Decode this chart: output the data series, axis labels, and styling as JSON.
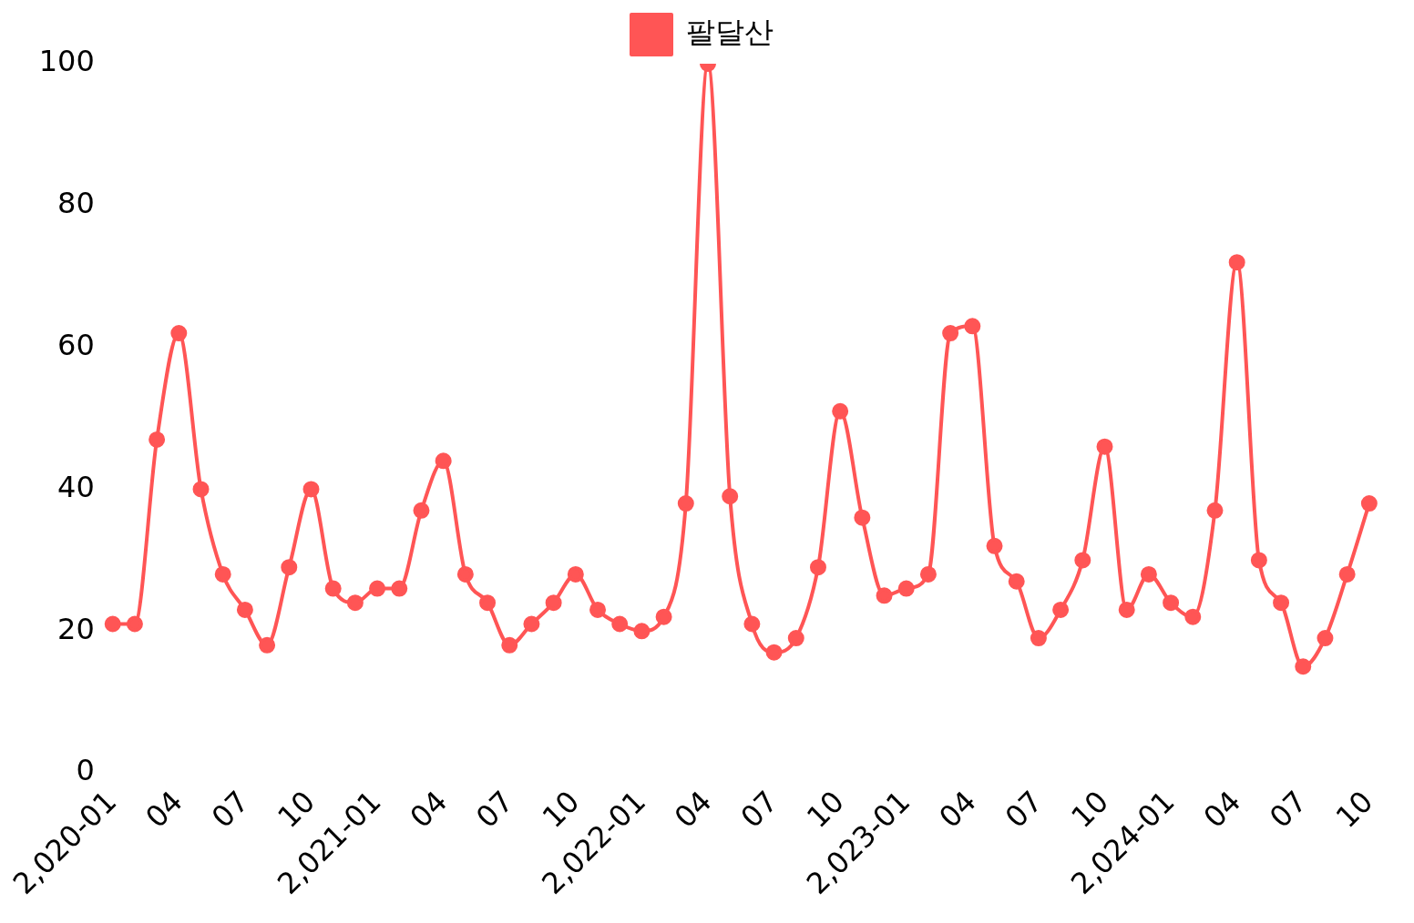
{
  "chart_data": {
    "type": "line",
    "categories": [
      "2,020-01",
      null,
      null,
      "04",
      null,
      null,
      "07",
      null,
      null,
      "10",
      null,
      null,
      "2,021-01",
      null,
      null,
      "04",
      null,
      null,
      "07",
      null,
      null,
      "10",
      null,
      null,
      "2,022-01",
      null,
      null,
      "04",
      null,
      null,
      "07",
      null,
      null,
      "10",
      null,
      null,
      "2,023-01",
      null,
      null,
      "04",
      null,
      null,
      "07",
      null,
      null,
      "10",
      null,
      null,
      "2,024-01",
      null,
      null,
      "04",
      null,
      null,
      "07",
      null,
      null,
      "10"
    ],
    "series": [
      {
        "name": "팔달산",
        "color": "#ff5555",
        "values": [
          21,
          21,
          47,
          62,
          40,
          28,
          23,
          18,
          29,
          40,
          26,
          24,
          26,
          26,
          37,
          44,
          28,
          24,
          18,
          21,
          24,
          28,
          23,
          21,
          20,
          22,
          38,
          100,
          39,
          21,
          17,
          19,
          29,
          51,
          36,
          25,
          26,
          28,
          62,
          63,
          32,
          27,
          19,
          23,
          30,
          46,
          23,
          28,
          24,
          22,
          37,
          72,
          30,
          24,
          15,
          19,
          28,
          38
        ]
      }
    ],
    "ylim": [
      0,
      100
    ],
    "yticks": [
      0,
      20,
      40,
      60,
      80,
      100
    ],
    "grid": false,
    "legend": "top",
    "marker": "circle",
    "line_style": "solid"
  }
}
